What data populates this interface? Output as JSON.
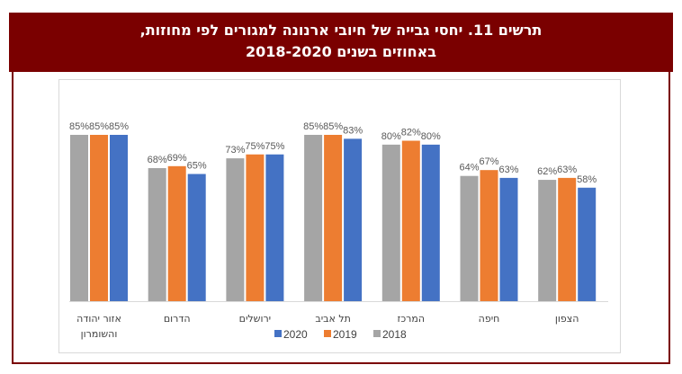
{
  "title_line1": "תרשים 11. יחסי גבייה של חיובי ארנונה למגורים לפי מחוזות,",
  "title_line2": "באחוזים בשנים 2018-2020",
  "chart_data": {
    "type": "bar",
    "categories": [
      [
        "אזור יהודה",
        "והשומרון"
      ],
      [
        "הדרום"
      ],
      [
        "ירושלים"
      ],
      [
        "תל אביב"
      ],
      [
        "המרכז"
      ],
      [
        "חיפה"
      ],
      [
        "הצפון"
      ]
    ],
    "series": [
      {
        "name": "2018",
        "color": "#a5a5a5",
        "values": [
          85,
          68,
          73,
          85,
          80,
          64,
          62
        ]
      },
      {
        "name": "2019",
        "color": "#ed7d31",
        "values": [
          85,
          69,
          75,
          85,
          82,
          67,
          63
        ]
      },
      {
        "name": "2020",
        "color": "#4472c4",
        "values": [
          85,
          65,
          75,
          83,
          80,
          63,
          58
        ]
      }
    ],
    "value_format": "%",
    "ylim": [
      0,
      85
    ],
    "grid": false,
    "legend": "bottom",
    "legend_order": [
      "2020",
      "2019",
      "2018"
    ]
  }
}
